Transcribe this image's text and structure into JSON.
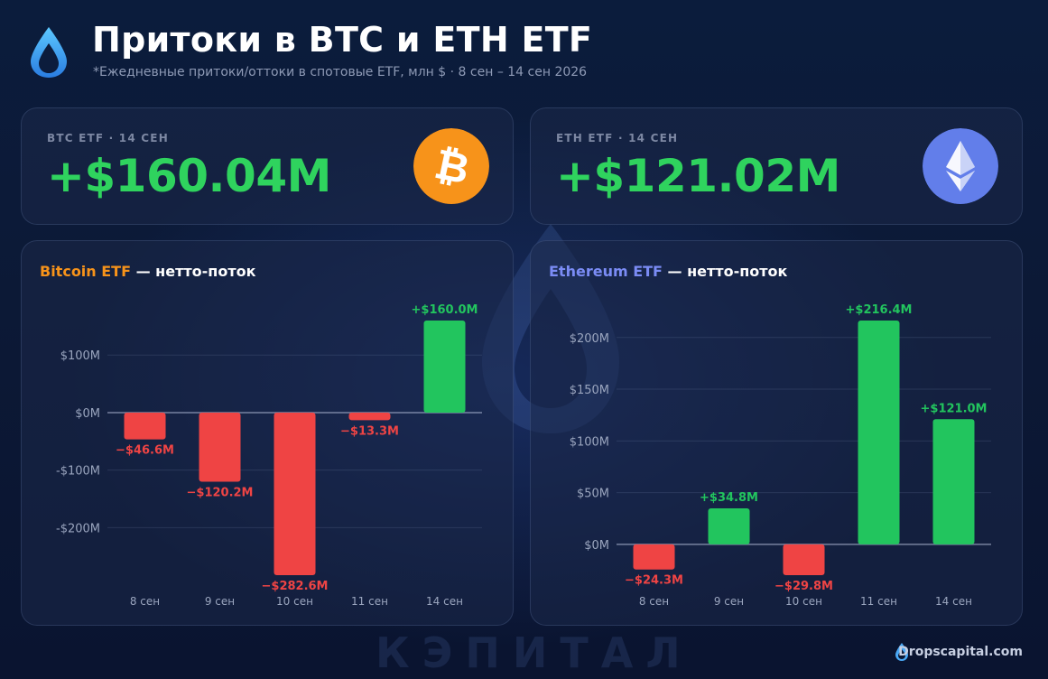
{
  "header": {
    "title": "Притоки в BTC и ETH ETF",
    "subtitle": "*Ежедневные притоки/оттоки в спотовые ETF, млн $ · 8 сен – 14 сен 2026"
  },
  "kpis": [
    {
      "label": "BTC ETF · 14 СЕН",
      "value": "+$160.04M",
      "coin": "bitcoin-icon",
      "color": "#f7931a"
    },
    {
      "label": "ETH ETF · 14 СЕН",
      "value": "+$121.02M",
      "coin": "ethereum-icon",
      "color": "#627eea"
    }
  ],
  "footer": {
    "brand": "Dropscapital.com",
    "watermark": "КЭПИТАЛ"
  },
  "colors": {
    "positive": "#22c55e",
    "negative": "#ef4444",
    "btc": "#f7931a",
    "eth": "#7b8cf5"
  },
  "chart_data": [
    {
      "type": "bar",
      "title": "Bitcoin ETF",
      "title_suffix": "— нетто-поток",
      "categories": [
        "8 сен",
        "9 сен",
        "10 сен",
        "11 сен",
        "14 сен"
      ],
      "values": [
        -46.6,
        -120.2,
        -282.6,
        -13.3,
        160.0
      ],
      "value_labels": [
        "−$46.6M",
        "−$120.2M",
        "−$282.6M",
        "−$13.3M",
        "+$160.0M"
      ],
      "yticks": [
        100,
        0,
        -100,
        -200
      ],
      "ytick_labels": [
        "$100M",
        "$0M",
        "-$100M",
        "-$200M"
      ],
      "ylim": [
        -282.6,
        160
      ],
      "grid": true
    },
    {
      "type": "bar",
      "title": "Ethereum ETF",
      "title_suffix": "— нетто-поток",
      "categories": [
        "8 сен",
        "9 сен",
        "10 сен",
        "11 сен",
        "14 сен"
      ],
      "values": [
        -24.3,
        34.8,
        -29.8,
        216.4,
        121.0
      ],
      "value_labels": [
        "−$24.3M",
        "+$34.8M",
        "−$29.8M",
        "+$216.4M",
        "+$121.0M"
      ],
      "yticks": [
        200,
        150,
        100,
        50,
        0
      ],
      "ytick_labels": [
        "$200M",
        "$150M",
        "$100M",
        "$50M",
        "$0M"
      ],
      "ylim": [
        -29.8,
        216.4
      ],
      "grid": true
    }
  ]
}
